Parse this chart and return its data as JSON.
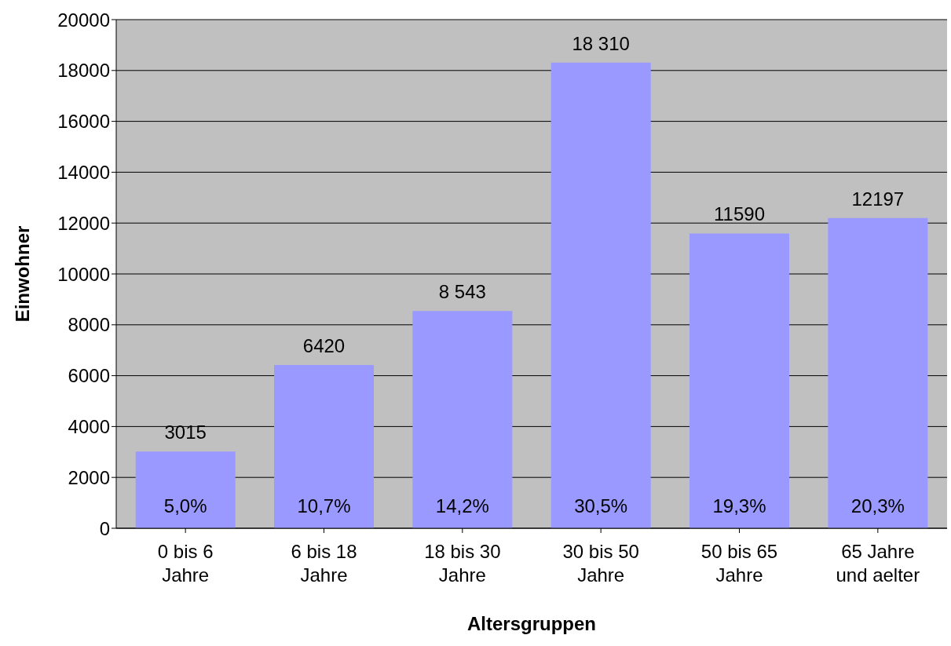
{
  "chart_data": {
    "type": "bar",
    "xlabel": "Altersgruppen",
    "ylabel": "Einwohner",
    "categories": [
      "0 bis 6 Jahre",
      "6 bis 18 Jahre",
      "18 bis 30 Jahre",
      "30 bis 50 Jahre",
      "50 bis 65 Jahre",
      "65 Jahre und aelter"
    ],
    "values": [
      3015,
      6420,
      8543,
      18310,
      11590,
      12197
    ],
    "value_labels": [
      "3015",
      "6420",
      "8 543",
      "18 310",
      "11590",
      "12197"
    ],
    "color": "#9999ff",
    "ylim": [
      0,
      20000
    ],
    "yticks": [
      0,
      2000,
      4000,
      6000,
      8000,
      10000,
      12000,
      14000,
      16000,
      18000,
      20000
    ],
    "grid": "y",
    "annotations": [
      "5,0%",
      "10,7%",
      "14,2%",
      "30,5%",
      "19,3%",
      "20,3%"
    ]
  }
}
